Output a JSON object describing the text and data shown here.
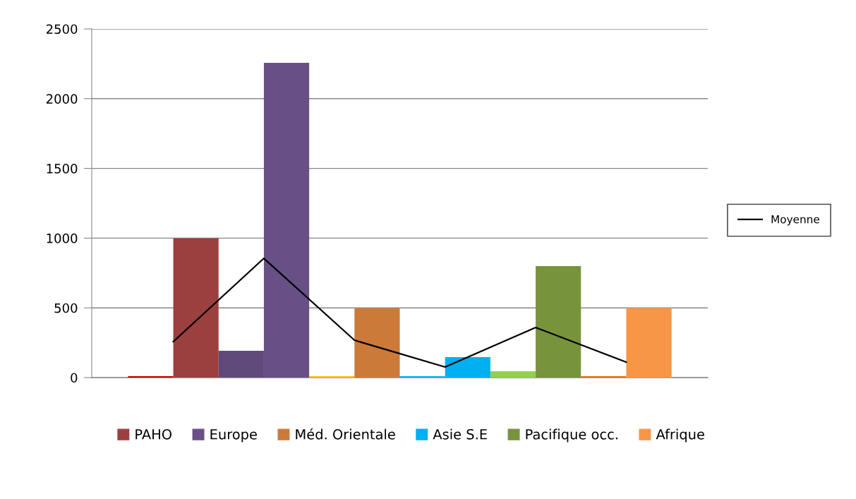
{
  "chart_data": {
    "type": "bar",
    "categories": [
      null,
      null,
      null,
      null,
      null,
      null
    ],
    "series": [
      {
        "color": "#c00000",
        "values": [
          10,
          null,
          null,
          null,
          null,
          null
        ]
      },
      {
        "name": "PAHO",
        "color": "#9c403f",
        "values": [
          1000,
          null,
          null,
          null,
          null,
          null
        ]
      },
      {
        "color": "#604a7b",
        "values": [
          null,
          192,
          null,
          null,
          null,
          null
        ]
      },
      {
        "name": "Europe",
        "color": "#685087",
        "values": [
          null,
          2257,
          null,
          null,
          null,
          null
        ]
      },
      {
        "color": "#ffc000",
        "values": [
          null,
          null,
          10,
          null,
          null,
          null
        ]
      },
      {
        "name": "Méd. Orientale",
        "color": "#cc7a3a",
        "values": [
          null,
          null,
          500,
          null,
          null,
          null
        ]
      },
      {
        "color": "#00b0f0",
        "values": [
          null,
          null,
          null,
          10,
          null,
          null
        ]
      },
      {
        "name": "Asie S.E",
        "color": "#00b0f0",
        "values": [
          null,
          null,
          null,
          147,
          null,
          null
        ]
      },
      {
        "color": "#92d050",
        "values": [
          null,
          null,
          null,
          null,
          46,
          null
        ]
      },
      {
        "name": "Pacifique occ.",
        "color": "#77933c",
        "values": [
          null,
          null,
          null,
          null,
          800,
          null
        ]
      },
      {
        "color": "#e46c0a",
        "values": [
          null,
          null,
          null,
          null,
          null,
          10
        ]
      },
      {
        "name": "Afrique",
        "color": "#f79646",
        "values": [
          null,
          null,
          null,
          null,
          null,
          500
        ]
      },
      {
        "name": "Moyenne",
        "type": "line",
        "color": "#000000",
        "values": [
          258,
          855,
          268,
          76,
          359,
          111
        ]
      }
    ],
    "ylim": [
      0,
      2500
    ],
    "yticks": [
      0,
      500,
      1000,
      1500,
      2000,
      2500
    ],
    "grid": "y",
    "legend": "bottom",
    "tick_labels": "y",
    "marker": "none",
    "line_style": "solid"
  }
}
